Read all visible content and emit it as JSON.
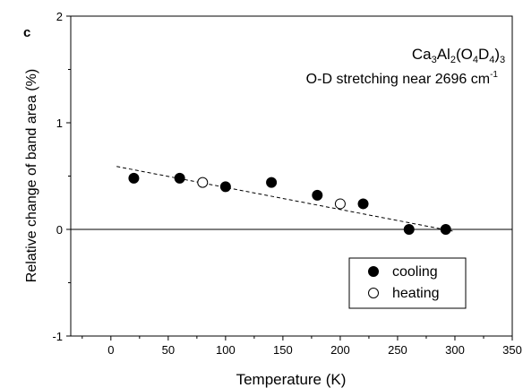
{
  "panel_label": "c",
  "chart_data": {
    "type": "scatter",
    "xlabel": "Temperature (K)",
    "ylabel": "Relative change of band area (%)",
    "xlim": [
      -35,
      350
    ],
    "ylim": [
      -1,
      2
    ],
    "x_ticks": [
      0,
      50,
      100,
      150,
      200,
      250,
      300,
      350
    ],
    "y_ticks": [
      -1,
      0,
      1,
      2
    ],
    "x_tick_labels": [
      "0",
      "50",
      "100",
      "150",
      "200",
      "250",
      "300",
      "350"
    ],
    "y_tick_labels": [
      "-1",
      "0",
      "1",
      "2"
    ],
    "grid": false,
    "reference_line_y": 0,
    "annotation": {
      "formula": {
        "t1": "Ca",
        "s1": "3",
        "t2": "Al",
        "s2": "2",
        "t3": "(O",
        "s3": "4",
        "t4": "D",
        "s4": "4",
        "t5": ")",
        "s5": "3"
      },
      "line2_text": "O-D stretching near 2696 cm",
      "line2_sup": "-1"
    },
    "legend_position": "bottom-right",
    "series": [
      {
        "name": "cooling",
        "marker": "filled-circle",
        "color": "#000000",
        "x": [
          20,
          60,
          100,
          140,
          180,
          220,
          260,
          292
        ],
        "y": [
          0.48,
          0.48,
          0.4,
          0.44,
          0.32,
          0.24,
          0.0,
          0.0
        ]
      },
      {
        "name": "heating",
        "marker": "open-circle",
        "color": "#000000",
        "x": [
          80,
          200
        ],
        "y": [
          0.44,
          0.24
        ]
      }
    ],
    "fit_line": {
      "style": "dashed",
      "x": [
        5,
        300
      ],
      "y": [
        0.59,
        -0.02
      ]
    }
  }
}
